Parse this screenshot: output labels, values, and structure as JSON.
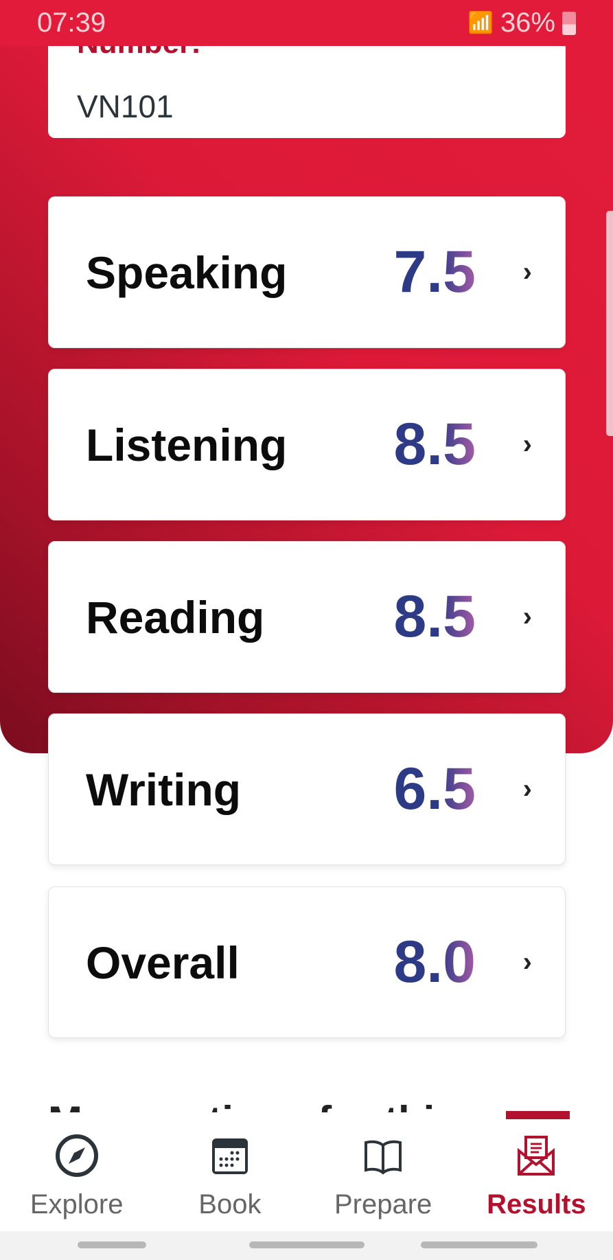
{
  "status_bar": {
    "time": "07:39",
    "battery": "36%"
  },
  "info_card": {
    "label": "Number:",
    "value": "VN101"
  },
  "scores": [
    {
      "name": "Speaking",
      "score": "7.5"
    },
    {
      "name": "Listening",
      "score": "8.5"
    },
    {
      "name": "Reading",
      "score": "8.5"
    },
    {
      "name": "Writing",
      "score": "6.5"
    },
    {
      "name": "Overall",
      "score": "8.0"
    }
  ],
  "section_heading_partial": "More options for this test",
  "nav": {
    "items": [
      {
        "label": "Explore",
        "icon": "compass-icon"
      },
      {
        "label": "Book",
        "icon": "calendar-icon"
      },
      {
        "label": "Prepare",
        "icon": "book-icon"
      },
      {
        "label": "Results",
        "icon": "envelope-icon",
        "active": true
      }
    ]
  },
  "colors": {
    "brand_red": "#e31b3a",
    "active": "#b3122e",
    "score_start": "#2d3b86",
    "score_end": "#a45aa6"
  }
}
